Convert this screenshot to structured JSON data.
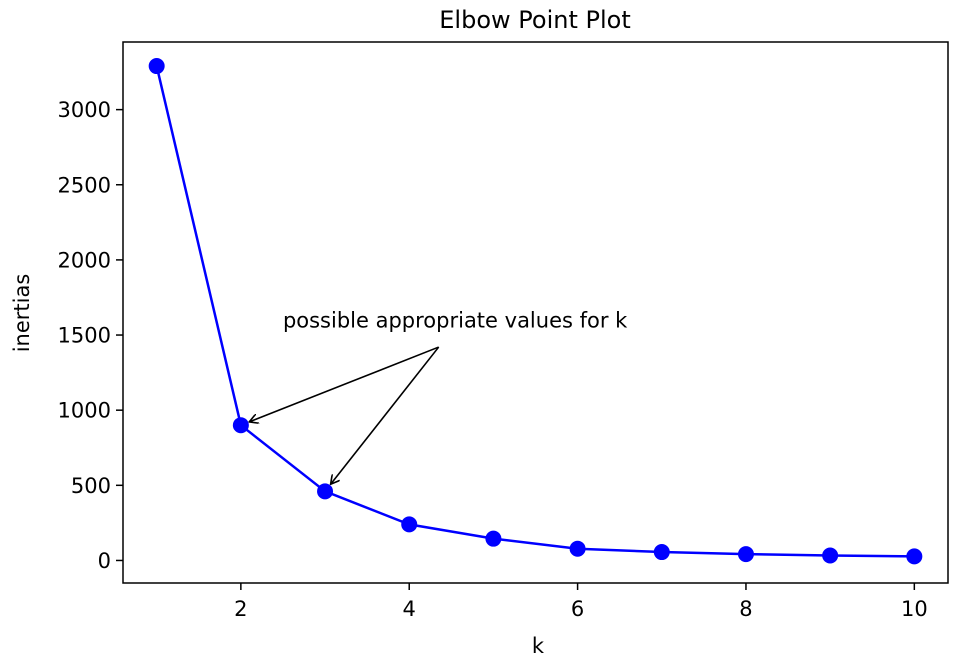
{
  "chart_data": {
    "type": "line",
    "title": "Elbow Point Plot",
    "xlabel": "k",
    "ylabel": "inertias",
    "xlim": [
      0.6,
      10.4
    ],
    "ylim": [
      -150,
      3450
    ],
    "xticks": [
      2,
      4,
      6,
      8,
      10
    ],
    "yticks": [
      0,
      500,
      1000,
      1500,
      2000,
      2500,
      3000
    ],
    "grid": false,
    "series": [
      {
        "x": [
          1,
          2,
          3,
          4,
          5,
          6,
          7,
          8,
          9,
          10
        ],
        "y": [
          3290,
          900,
          460,
          240,
          145,
          78,
          56,
          42,
          33,
          27
        ],
        "color": "#0000ff",
        "marker": "circle"
      }
    ],
    "annotations": [
      {
        "text": "possible appropriate values for k",
        "text_anchor_data": [
          2.5,
          1550
        ],
        "arrow_from_data": [
          4.35,
          1420
        ],
        "arrow_to_points_data": [
          [
            2,
            900
          ],
          [
            3,
            460
          ]
        ]
      }
    ]
  }
}
